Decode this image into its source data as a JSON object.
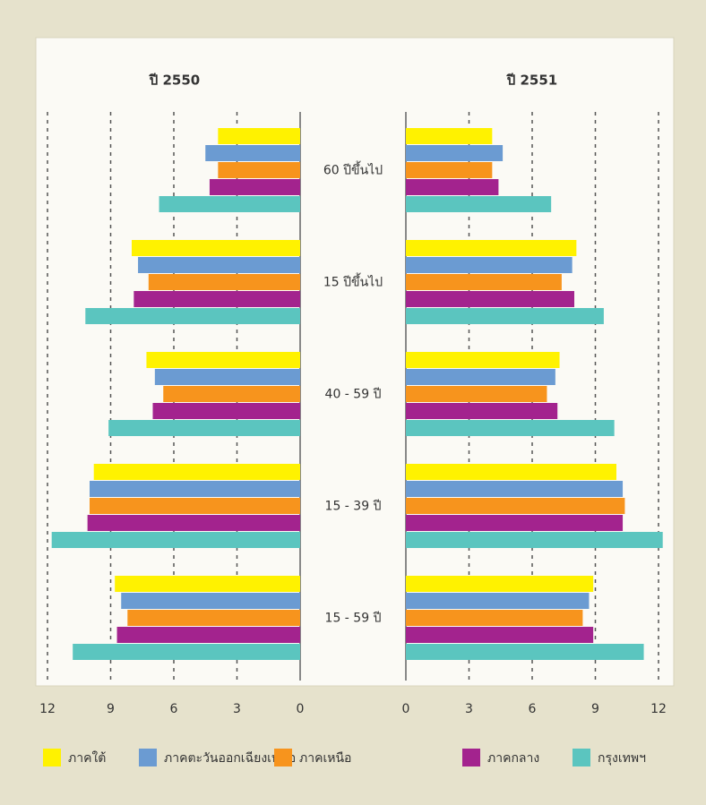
{
  "chart_data": [
    {
      "type": "bar",
      "orientation": "horizontal",
      "x_reversed": true,
      "title": "ปี 2550",
      "categories": [
        "60 ปีขึ้นไป",
        "15 ปีขึ้นไป",
        "40 - 59 ปี",
        "15 - 39 ปี",
        "15 - 59 ปี"
      ],
      "series": [
        {
          "name": "ภาคใต้",
          "color": "#fff200",
          "values": [
            3.9,
            8.0,
            7.3,
            9.8,
            8.8
          ]
        },
        {
          "name": "ภาคตะวันออกเฉียงเหนือ",
          "color": "#6b9bd2",
          "values": [
            4.5,
            7.7,
            6.9,
            10.0,
            8.5
          ]
        },
        {
          "name": "ภาคเหนือ",
          "color": "#f7941d",
          "values": [
            3.9,
            7.2,
            6.5,
            10.0,
            8.2
          ]
        },
        {
          "name": "ภาคกลาง",
          "color": "#a3238e",
          "values": [
            4.3,
            7.9,
            7.0,
            10.1,
            8.7
          ]
        },
        {
          "name": "กรุงเทพฯ",
          "color": "#5bc5bf",
          "values": [
            6.7,
            10.2,
            9.1,
            11.8,
            10.8
          ]
        }
      ],
      "xlim": [
        0,
        12
      ],
      "xticks": [
        0,
        3,
        6,
        9,
        12
      ],
      "grid": true
    },
    {
      "type": "bar",
      "orientation": "horizontal",
      "x_reversed": false,
      "title": "ปี 2551",
      "categories": [
        "60 ปีขึ้นไป",
        "15 ปีขึ้นไป",
        "40 - 59 ปี",
        "15 - 39 ปี",
        "15 - 59 ปี"
      ],
      "series": [
        {
          "name": "ภาคใต้",
          "color": "#fff200",
          "values": [
            4.1,
            8.1,
            7.3,
            10.0,
            8.9
          ]
        },
        {
          "name": "ภาคตะวันออกเฉียงเหนือ",
          "color": "#6b9bd2",
          "values": [
            4.6,
            7.9,
            7.1,
            10.3,
            8.7
          ]
        },
        {
          "name": "ภาคเหนือ",
          "color": "#f7941d",
          "values": [
            4.1,
            7.4,
            6.7,
            10.4,
            8.4
          ]
        },
        {
          "name": "ภาคกลาง",
          "color": "#a3238e",
          "values": [
            4.4,
            8.0,
            7.2,
            10.3,
            8.9
          ]
        },
        {
          "name": "กรุงเทพฯ",
          "color": "#5bc5bf",
          "values": [
            6.9,
            9.4,
            9.9,
            12.2,
            11.3
          ]
        }
      ],
      "xlim": [
        0,
        12
      ],
      "xticks": [
        0,
        3,
        6,
        9,
        12
      ],
      "grid": true
    }
  ]
}
